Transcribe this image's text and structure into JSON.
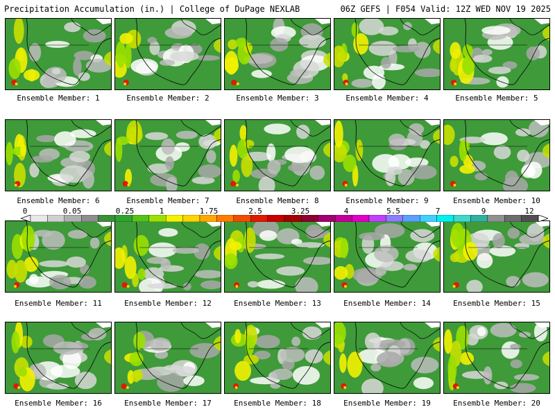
{
  "header": {
    "left": "Precipitation Accumulation (in.) | College of DuPage NEXLAB",
    "right": "06Z GEFS | F054 Valid: 12Z WED NOV 19 2025"
  },
  "panels": [
    "Ensemble Member: 1",
    "Ensemble Member: 2",
    "Ensemble Member: 3",
    "Ensemble Member: 4",
    "Ensemble Member: 5",
    "Ensemble Member: 6",
    "Ensemble Member: 7",
    "Ensemble Member: 8",
    "Ensemble Member: 9",
    "Ensemble Member: 10",
    "Ensemble Member: 11",
    "Ensemble Member: 12",
    "Ensemble Member: 13",
    "Ensemble Member: 14",
    "Ensemble Member: 15",
    "Ensemble Member: 16",
    "Ensemble Member: 17",
    "Ensemble Member: 18",
    "Ensemble Member: 19",
    "Ensemble Member: 20"
  ],
  "colorbar": {
    "tick_labels": [
      "0",
      "0.05",
      "0.25",
      "1",
      "1.75",
      "2.5",
      "3.25",
      "4",
      "5.5",
      "7",
      "9",
      "12"
    ],
    "colors": [
      "#e8e8e8",
      "#cfcfcf",
      "#b0b0b0",
      "#8e8e8e",
      "#3a8f3a",
      "#2fa32f",
      "#55c21c",
      "#9ae000",
      "#f2f200",
      "#ffd400",
      "#ffa800",
      "#ff7c00",
      "#f14c00",
      "#e01a00",
      "#c80000",
      "#a30000",
      "#8a0030",
      "#a0006e",
      "#c3009a",
      "#e000c8",
      "#c040ff",
      "#8c7cff",
      "#5aa0ff",
      "#40d0ff",
      "#00f0f0",
      "#40d8c8",
      "#30b0a0",
      "#909090",
      "#6c6c6c",
      "#505050"
    ]
  }
}
